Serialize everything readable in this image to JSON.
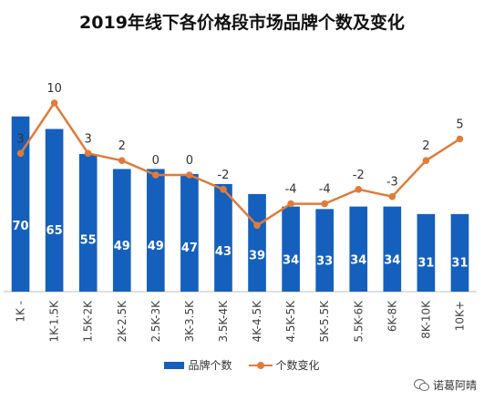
{
  "chart_data": {
    "type": "bar",
    "title": "2019年线下各价格段市场品牌个数及变化",
    "categories": [
      "1K -",
      "1K-1.5K",
      "1.5K-2K",
      "2K-2.5K",
      "2.5K-3K",
      "3K-3.5K",
      "3.5K-4K",
      "4K-4.5K",
      "4.5K-5K",
      "5K-5.5K",
      "5.5K-6K",
      "6K-8K",
      "8K-10K",
      "10K+"
    ],
    "series": [
      {
        "name": "品牌个数",
        "type": "bar",
        "color": "#1560BD",
        "values": [
          70,
          65,
          55,
          49,
          49,
          47,
          43,
          39,
          34,
          33,
          34,
          34,
          31,
          31
        ]
      },
      {
        "name": "个数变化",
        "type": "line",
        "color": "#E07B39",
        "values": [
          3,
          10,
          3,
          2,
          0,
          0,
          -2,
          -7,
          -4,
          -4,
          -2,
          -3,
          2,
          5
        ],
        "labels": [
          "3",
          "10",
          "3",
          "2",
          "0",
          "0",
          "-2",
          "",
          "-4",
          "-4",
          "-2",
          "-3",
          "2",
          "5"
        ]
      }
    ],
    "grid": false,
    "legend": "bottom"
  },
  "watermark": {
    "text": "诺葛阿晴",
    "icon": "wechat-icon"
  }
}
